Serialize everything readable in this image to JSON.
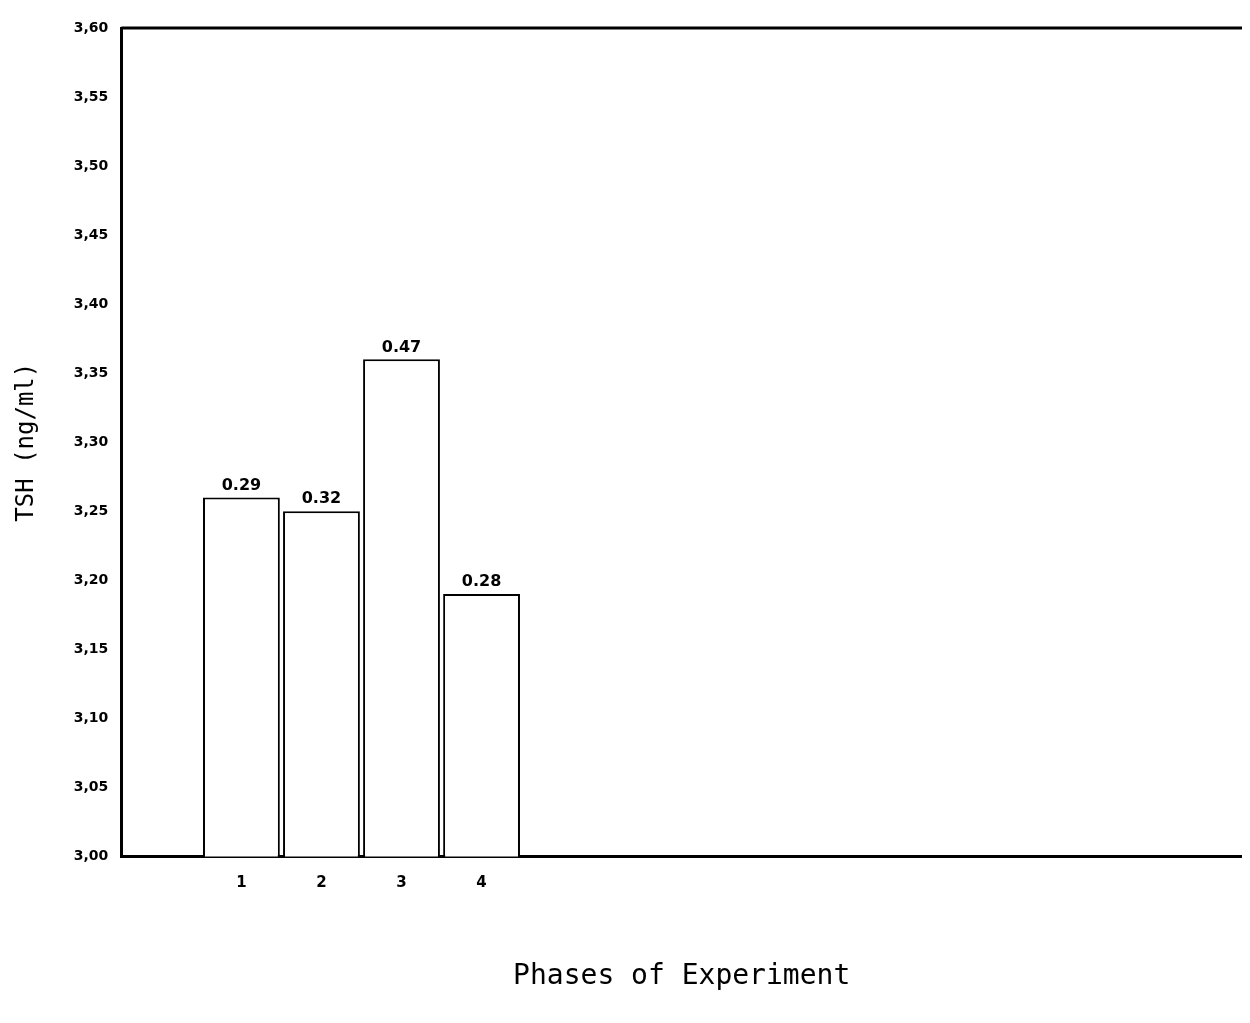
{
  "chart_data": {
    "type": "bar",
    "xlabel": "Phases of Experiment",
    "ylabel": "TSH (ng/ml)",
    "categories": [
      "1",
      "2",
      "3",
      "4"
    ],
    "values": [
      3.26,
      3.25,
      3.36,
      3.19
    ],
    "color": "#ffffff",
    "ylim": [
      3.0,
      3.6
    ],
    "yticks": [
      {
        "value": 3.0,
        "label": "3,00"
      },
      {
        "value": 3.05,
        "label": "3,05"
      },
      {
        "value": 3.1,
        "label": "3,10"
      },
      {
        "value": 3.15,
        "label": "3,15"
      },
      {
        "value": 3.2,
        "label": "3,20"
      },
      {
        "value": 3.25,
        "label": "3,25"
      },
      {
        "value": 3.3,
        "label": "3,30"
      },
      {
        "value": 3.35,
        "label": "3,35"
      },
      {
        "value": 3.4,
        "label": "3,40"
      },
      {
        "value": 3.45,
        "label": "3,45"
      },
      {
        "value": 3.5,
        "label": "3,50"
      },
      {
        "value": 3.55,
        "label": "3,55"
      },
      {
        "value": 3.6,
        "label": "3,60"
      }
    ],
    "annotations": [
      {
        "text": "0.29",
        "x": "1",
        "y": 3.26
      },
      {
        "text": "0.32",
        "x": "2",
        "y": 3.25
      },
      {
        "text": "0.47",
        "x": "3",
        "y": 3.36
      },
      {
        "text": "0.28",
        "x": "4",
        "y": 3.19
      }
    ],
    "grid": false,
    "legend": false
  }
}
